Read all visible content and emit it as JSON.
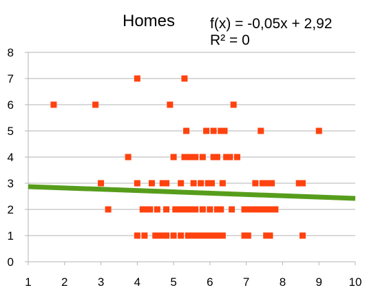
{
  "chart_data": {
    "type": "scatter",
    "title": "Homes",
    "trendline": {
      "equation": "f(x) = -0,05x + 2,92",
      "r_squared": "R² = 0",
      "slope": -0.05,
      "intercept": 2.92,
      "color": "#579d1c"
    },
    "marker_color": "#ff420e",
    "xlim": [
      1,
      10
    ],
    "ylim": [
      0,
      8
    ],
    "x_ticks": [
      "1",
      "2",
      "3",
      "4",
      "5",
      "6",
      "7",
      "8",
      "9",
      "10"
    ],
    "y_ticks": [
      "0",
      "1",
      "2",
      "3",
      "4",
      "5",
      "6",
      "7",
      "8"
    ],
    "grid": "horizontal",
    "points": [
      [
        1.7,
        6
      ],
      [
        2.85,
        6
      ],
      [
        4.9,
        6
      ],
      [
        6.65,
        6
      ],
      [
        4.0,
        7
      ],
      [
        5.3,
        7
      ],
      [
        5.35,
        5
      ],
      [
        5.9,
        5
      ],
      [
        6.1,
        5
      ],
      [
        6.3,
        5
      ],
      [
        6.4,
        5
      ],
      [
        7.4,
        5
      ],
      [
        9.0,
        5
      ],
      [
        3.75,
        4
      ],
      [
        5.0,
        4
      ],
      [
        5.3,
        4
      ],
      [
        5.4,
        4
      ],
      [
        5.5,
        4
      ],
      [
        5.6,
        4
      ],
      [
        5.8,
        4
      ],
      [
        6.1,
        4
      ],
      [
        6.2,
        4
      ],
      [
        6.45,
        4
      ],
      [
        6.55,
        4
      ],
      [
        6.75,
        4
      ],
      [
        3.0,
        3
      ],
      [
        4.0,
        3
      ],
      [
        4.4,
        3
      ],
      [
        4.7,
        3
      ],
      [
        4.8,
        3
      ],
      [
        5.2,
        3
      ],
      [
        5.55,
        3
      ],
      [
        5.75,
        3
      ],
      [
        5.95,
        3
      ],
      [
        6.05,
        3
      ],
      [
        6.35,
        3
      ],
      [
        7.25,
        3
      ],
      [
        7.45,
        3
      ],
      [
        7.55,
        3
      ],
      [
        7.7,
        3
      ],
      [
        8.45,
        3
      ],
      [
        8.55,
        3
      ],
      [
        3.2,
        2
      ],
      [
        4.15,
        2
      ],
      [
        4.25,
        2
      ],
      [
        4.35,
        2
      ],
      [
        4.55,
        2
      ],
      [
        4.8,
        2
      ],
      [
        5.05,
        2
      ],
      [
        5.15,
        2
      ],
      [
        5.25,
        2
      ],
      [
        5.35,
        2
      ],
      [
        5.45,
        2
      ],
      [
        5.6,
        2
      ],
      [
        5.8,
        2
      ],
      [
        6.0,
        2
      ],
      [
        6.2,
        2
      ],
      [
        6.3,
        2
      ],
      [
        6.6,
        2
      ],
      [
        6.95,
        2
      ],
      [
        7.05,
        2
      ],
      [
        7.15,
        2
      ],
      [
        7.25,
        2
      ],
      [
        7.35,
        2
      ],
      [
        7.45,
        2
      ],
      [
        7.55,
        2
      ],
      [
        7.65,
        2
      ],
      [
        7.8,
        2
      ],
      [
        4.0,
        1
      ],
      [
        4.2,
        1
      ],
      [
        4.5,
        1
      ],
      [
        4.6,
        1
      ],
      [
        4.7,
        1
      ],
      [
        4.8,
        1
      ],
      [
        5.0,
        1
      ],
      [
        5.2,
        1
      ],
      [
        5.4,
        1
      ],
      [
        5.5,
        1
      ],
      [
        5.6,
        1
      ],
      [
        5.7,
        1
      ],
      [
        5.8,
        1
      ],
      [
        5.9,
        1
      ],
      [
        6.05,
        1
      ],
      [
        6.15,
        1
      ],
      [
        6.25,
        1
      ],
      [
        6.35,
        1
      ],
      [
        6.95,
        1
      ],
      [
        7.05,
        1
      ],
      [
        7.55,
        1
      ],
      [
        7.65,
        1
      ],
      [
        8.55,
        1
      ]
    ]
  }
}
